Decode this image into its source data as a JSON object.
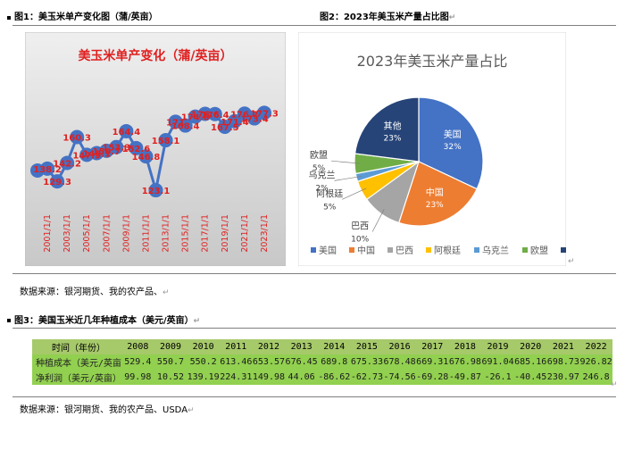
{
  "fig1": {
    "caption": "图1：美玉米单产变化图（蒲/英亩）",
    "chart_data": {
      "type": "line",
      "title": "美玉米单产变化（蒲/英亩）",
      "x": [
        "2000",
        "2001",
        "2002",
        "2003",
        "2004",
        "2005",
        "2006",
        "2007",
        "2008",
        "2009",
        "2010",
        "2011",
        "2012",
        "2013",
        "2014",
        "2015",
        "2016",
        "2017",
        "2018",
        "2019",
        "2020",
        "2021",
        "2022",
        "2023"
      ],
      "values": [
        136.9,
        138.2,
        129.3,
        142.2,
        160.3,
        147.9,
        149.1,
        150.7,
        153.3,
        164.4,
        152.6,
        146.8,
        123.1,
        158.1,
        171.0,
        168.4,
        174.6,
        176.6,
        176.4,
        167.5,
        171.4,
        176.7,
        173.4,
        177.3
      ],
      "data_labels": [
        "",
        "138.2",
        "129.3",
        "142.2",
        "160.3",
        "147.9",
        "149.1",
        "150.7",
        "153.3",
        "164.4",
        "152.6",
        "146.8",
        "123.1",
        "158.1",
        "171",
        "168.4",
        "174.6",
        "176.6",
        "176.4",
        "167.5",
        "171.4",
        "176.7",
        "173.4",
        "177.3"
      ],
      "tick_labels": [
        "2001/1/1",
        "2003/1/1",
        "2005/1/1",
        "2007/1/1",
        "2009/1/1",
        "2011/1/1",
        "2013/1/1",
        "2015/1/1",
        "2017/1/1",
        "2019/1/1",
        "2021/1/1",
        "2023/1/1"
      ],
      "ylim": [
        110,
        185
      ],
      "colors": {
        "line": "#4472c4",
        "label": "#e02020",
        "title": "#e02020",
        "background": "#d9d9d9"
      }
    }
  },
  "fig2": {
    "caption": "图2：2023年美玉米产量占比图",
    "chart_data": {
      "type": "pie",
      "title": "2023年美玉米产量占比",
      "slices": [
        {
          "name": "美国",
          "value": 32,
          "label": "32%",
          "color": "#4472c4"
        },
        {
          "name": "中国",
          "value": 23,
          "label": "23%",
          "color": "#ed7d31"
        },
        {
          "name": "巴西",
          "value": 10,
          "label": "10%",
          "color": "#a5a5a5"
        },
        {
          "name": "阿根廷",
          "value": 5,
          "label": "5%",
          "color": "#ffc000"
        },
        {
          "name": "乌克兰",
          "value": 2,
          "label": "2%",
          "color": "#5b9bd5"
        },
        {
          "name": "欧盟",
          "value": 5,
          "label": "5%",
          "color": "#70ad47"
        },
        {
          "name": "其他",
          "value": 23,
          "label": "23%",
          "color": "#264478"
        }
      ],
      "legend_position": "bottom"
    }
  },
  "source1": "数据来源：银河期货、我的农产品、",
  "fig3": {
    "caption": "图3：美国玉米近几年种植成本（美元/英亩）",
    "table": {
      "header_label": "时间（年份）",
      "years": [
        "2008",
        "2009",
        "2010",
        "2011",
        "2012",
        "2013",
        "2014",
        "2015",
        "2016",
        "2017",
        "2018",
        "2019",
        "2020",
        "2021",
        "2022"
      ],
      "rows": [
        {
          "label": "种植成本（美元/英亩）",
          "values": [
            "529.4",
            "550.7",
            "550.2",
            "613.46",
            "653.57",
            "676.45",
            "689.8",
            "675.33",
            "678.48",
            "669.31",
            "676.98",
            "691.04",
            "685.16",
            "698.73",
            "926.82"
          ]
        },
        {
          "label": "净利润（美元/英亩）",
          "values": [
            "99.98",
            "10.52",
            "139.19",
            "224.31",
            "149.98",
            "44.06",
            "-86.62",
            "-62.73",
            "-74.56",
            "-69.28",
            "-49.87",
            "-26.1",
            "-40.45",
            "230.97",
            "246.8"
          ]
        }
      ]
    }
  },
  "source2": "数据来源：银河期货、我的农产品、USDA",
  "para_mark": "↵"
}
